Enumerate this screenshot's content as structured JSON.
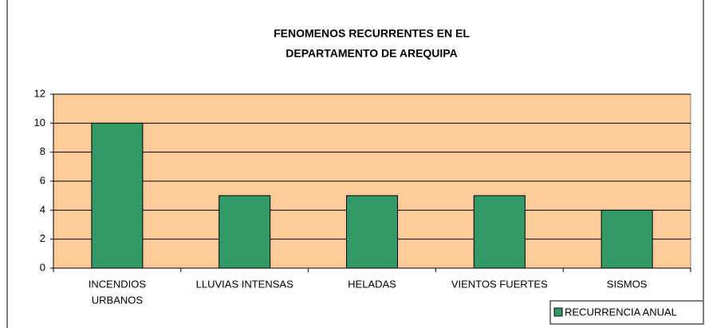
{
  "chart_data": {
    "type": "bar",
    "title": [
      "FENOMENOS RECURRENTES EN EL",
      "DEPARTAMENTO DE AREQUIPA"
    ],
    "categories": [
      [
        "INCENDIOS",
        "URBANOS"
      ],
      "LLUVIAS INTENSAS",
      "HELADAS",
      "VIENTOS FUERTES",
      "SISMOS"
    ],
    "series": [
      {
        "name": "RECURRENCIA ANUAL",
        "color": "#339966",
        "values": [
          10,
          5,
          5,
          5,
          4
        ]
      }
    ],
    "ylim": [
      0,
      12
    ],
    "yticks": [
      0,
      2,
      4,
      6,
      8,
      10,
      12
    ],
    "grid": true,
    "plot_background": "#FFCC99",
    "legend": "bottom-right"
  }
}
